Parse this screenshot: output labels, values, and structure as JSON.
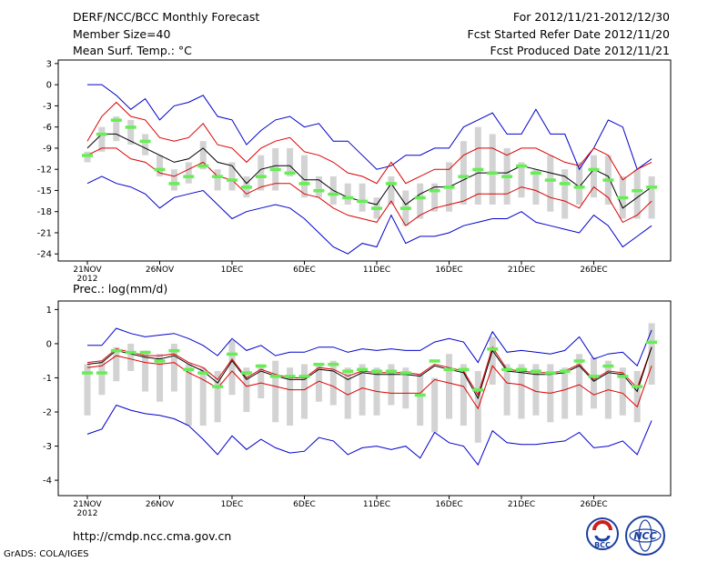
{
  "header": {
    "title": "DERF/NCC/BCC Monthly Forecast",
    "member_size": "Member Size=40",
    "variable": "Mean Surf. Temp.: °C",
    "period": "For 2012/11/21-2012/12/30",
    "started": "Fcst Started Refer Date 2012/11/20",
    "produced": "Fcst Produced Date 2012/11/21"
  },
  "footer": {
    "url": "http://cmdp.ncc.cma.gov.cn",
    "credit": "GrADS: COLA/IGES",
    "logo1_text": "BCC",
    "logo2_text": "NCC"
  },
  "colors": {
    "spread_box": "#d3d3d3",
    "median_bar": "#66ee55",
    "envelope": "#0000cc",
    "inner": "#dd0000",
    "mean": "#000000"
  },
  "chart_data": [
    {
      "type": "ensemble-boxplot",
      "title": "Mean Surf. Temp.: °C",
      "ylim": [
        -25,
        3.5
      ],
      "yticks": [
        3,
        0,
        -3,
        -6,
        -9,
        -12,
        -15,
        -18,
        -21,
        -24
      ],
      "x": [
        1,
        2,
        3,
        4,
        5,
        6,
        7,
        8,
        9,
        10,
        11,
        12,
        13,
        14,
        15,
        16,
        17,
        18,
        19,
        20,
        21,
        22,
        23,
        24,
        25,
        26,
        27,
        28,
        29,
        30,
        31,
        32,
        33,
        34,
        35,
        36,
        37,
        38,
        39,
        40
      ],
      "xticks": [
        {
          "x": 1,
          "label": "21NOV",
          "sub": "2012"
        },
        {
          "x": 6,
          "label": "26NOV"
        },
        {
          "x": 11,
          "label": "1DEC"
        },
        {
          "x": 16,
          "label": "6DEC"
        },
        {
          "x": 21,
          "label": "11DEC"
        },
        {
          "x": 26,
          "label": "16DEC"
        },
        {
          "x": 31,
          "label": "21DEC"
        },
        {
          "x": 36,
          "label": "26DEC"
        }
      ],
      "box_low": [
        -11,
        -9.5,
        -8,
        -8.5,
        -10,
        -13,
        -15,
        -14,
        -12,
        -15,
        -15,
        -16,
        -15,
        -15,
        -13,
        -16,
        -16,
        -17,
        -17,
        -18,
        -19,
        -17,
        -20,
        -19,
        -18,
        -18,
        -17,
        -17,
        -17,
        -17,
        -16,
        -17,
        -18,
        -19,
        -17,
        -16,
        -17,
        -19,
        -19,
        -19
      ],
      "box_high": [
        -9.5,
        -6,
        -4.5,
        -5,
        -7,
        -10,
        -12,
        -11,
        -8,
        -12,
        -11,
        -13,
        -10,
        -9,
        -9,
        -10,
        -13,
        -13,
        -14,
        -14,
        -16,
        -13,
        -15,
        -14,
        -14,
        -11,
        -8,
        -6,
        -7,
        -9,
        -11,
        -12,
        -10,
        -12,
        -11,
        -10,
        -10,
        -13,
        -12,
        -13
      ],
      "median": [
        -10,
        -7,
        -5,
        -6,
        -8,
        -12,
        -14,
        -13,
        -11.5,
        -13,
        -13.5,
        -14.5,
        -13,
        -12,
        -12.5,
        -14,
        -15,
        -15.5,
        -16,
        -16.5,
        -17.5,
        -14,
        -17.5,
        -16,
        -15,
        -14.5,
        -13,
        -12,
        -12.5,
        -13,
        -11.5,
        -12.5,
        -13.5,
        -14,
        -14.5,
        -12,
        -13.5,
        -16,
        -15,
        -14.5
      ],
      "series": [
        {
          "name": "ensemble max",
          "role": "envelope",
          "values": [
            0,
            0,
            -1.5,
            -3.5,
            -2,
            -5,
            -3,
            -2.5,
            -1.5,
            -4.5,
            -5,
            -8.5,
            -6.5,
            -5,
            -4.5,
            -6,
            -5.5,
            -8,
            -8,
            -10,
            -12,
            -11.5,
            -10,
            -10,
            -9,
            -9,
            -6,
            -5,
            -4,
            -7,
            -7,
            -3.5,
            -7,
            -7,
            -12,
            -9,
            -5,
            -6,
            -12,
            -10.5
          ]
        },
        {
          "name": "upper",
          "role": "inner",
          "values": [
            -8,
            -4.5,
            -2.5,
            -4.5,
            -5,
            -7.5,
            -8,
            -7.5,
            -5.5,
            -8.5,
            -9,
            -11,
            -9,
            -8,
            -7.5,
            -9.5,
            -10,
            -11,
            -12.5,
            -13,
            -14,
            -11,
            -14,
            -13,
            -12,
            -12,
            -10,
            -9,
            -9,
            -10,
            -9,
            -9,
            -10,
            -11,
            -11.5,
            -9,
            -10,
            -13.5,
            -12,
            -11
          ]
        },
        {
          "name": "mean",
          "role": "mean",
          "values": [
            -9,
            -7,
            -7,
            -8,
            -9,
            -10,
            -11,
            -10.5,
            -9,
            -11,
            -11.5,
            -14,
            -12,
            -11.5,
            -11.5,
            -13.5,
            -13.5,
            -15,
            -16,
            -16.5,
            -17,
            -14,
            -17,
            -15.5,
            -14.5,
            -14.5,
            -13.5,
            -12.5,
            -12.5,
            -12.5,
            -11.5,
            -12,
            -12.5,
            -13,
            -14.5,
            -12,
            -13,
            -17.5,
            -16,
            -14.5
          ]
        },
        {
          "name": "lower",
          "role": "inner",
          "values": [
            -10,
            -9,
            -9,
            -10.5,
            -11,
            -12.5,
            -13,
            -12,
            -11,
            -13,
            -13.5,
            -15.5,
            -14.5,
            -14,
            -14,
            -15.5,
            -16,
            -17.5,
            -18.5,
            -19,
            -19.5,
            -16.5,
            -20,
            -18.5,
            -17.5,
            -17,
            -16.5,
            -15.5,
            -15.5,
            -15.5,
            -14.5,
            -15,
            -16,
            -16.5,
            -17.5,
            -14.5,
            -16,
            -19.5,
            -18.5,
            -16.5
          ]
        },
        {
          "name": "ensemble min",
          "role": "envelope",
          "values": [
            -14,
            -13,
            -14,
            -14.5,
            -15.5,
            -17.5,
            -16,
            -15.5,
            -15,
            -17,
            -19,
            -18,
            -17.5,
            -17,
            -17.5,
            -19,
            -21,
            -23,
            -24,
            -22.5,
            -23,
            -18.5,
            -22.5,
            -21.5,
            -21.5,
            -21,
            -20,
            -19.5,
            -19,
            -19,
            -18,
            -19.5,
            -20,
            -20.5,
            -21,
            -18.5,
            -20,
            -23,
            -21.5,
            -20
          ]
        }
      ]
    },
    {
      "type": "ensemble-boxplot",
      "title": "Prec.: log(mm/d)",
      "ylim": [
        -4.45,
        1.25
      ],
      "yticks": [
        1,
        0,
        -1,
        -2,
        -3,
        -4
      ],
      "x": [
        1,
        2,
        3,
        4,
        5,
        6,
        7,
        8,
        9,
        10,
        11,
        12,
        13,
        14,
        15,
        16,
        17,
        18,
        19,
        20,
        21,
        22,
        23,
        24,
        25,
        26,
        27,
        28,
        29,
        30,
        31,
        32,
        33,
        34,
        35,
        36,
        37,
        38,
        39,
        40
      ],
      "xticks": [
        {
          "x": 1,
          "label": "21NOV",
          "sub": "2012"
        },
        {
          "x": 6,
          "label": "26NOV"
        },
        {
          "x": 11,
          "label": "1DEC"
        },
        {
          "x": 16,
          "label": "6DEC"
        },
        {
          "x": 21,
          "label": "11DEC"
        },
        {
          "x": 26,
          "label": "16DEC"
        },
        {
          "x": 31,
          "label": "21DEC"
        },
        {
          "x": 36,
          "label": "26DEC"
        }
      ],
      "box_low": [
        -2.1,
        -1.5,
        -1.1,
        -0.8,
        -1.4,
        -1.7,
        -1.4,
        -2.4,
        -2.4,
        -2.3,
        -1.5,
        -2.0,
        -1.6,
        -2.3,
        -2.4,
        -2.2,
        -1.7,
        -1.8,
        -2.2,
        -2.1,
        -2.1,
        -1.8,
        -1.9,
        -2.4,
        -2.6,
        -2.2,
        -2.4,
        -2.9,
        -1.2,
        -2.1,
        -2.2,
        -2.1,
        -2.3,
        -2.2,
        -2.1,
        -1.9,
        -2.2,
        -2.1,
        -2.3,
        -1.2
      ],
      "box_high": [
        -0.6,
        -0.5,
        -0.1,
        0.0,
        -0.2,
        -0.3,
        0.0,
        -0.6,
        -0.7,
        -0.8,
        0.1,
        -0.7,
        -0.6,
        -0.5,
        -0.7,
        -0.6,
        -0.6,
        -0.5,
        -0.7,
        -0.6,
        -0.7,
        -0.6,
        -0.7,
        -0.9,
        -1.0,
        -0.3,
        -0.6,
        -0.8,
        0.2,
        -0.6,
        -0.6,
        -0.6,
        -0.6,
        -0.7,
        -0.3,
        -0.4,
        -0.5,
        -0.7,
        -0.8,
        0.6
      ],
      "median": [
        -0.85,
        -0.85,
        -0.2,
        -0.25,
        -0.25,
        -0.5,
        -0.2,
        -0.75,
        -0.85,
        -1.25,
        -0.3,
        -0.85,
        -0.65,
        -0.95,
        -0.95,
        -0.95,
        -0.6,
        -0.6,
        -0.8,
        -0.75,
        -0.8,
        -0.8,
        -0.85,
        -1.5,
        -0.5,
        -0.75,
        -0.75,
        -1.35,
        -0.15,
        -0.75,
        -0.75,
        -0.8,
        -0.85,
        -0.8,
        -0.5,
        -0.95,
        -0.65,
        -0.95,
        -1.25,
        0.05
      ],
      "series": [
        {
          "name": "ensemble max",
          "role": "envelope",
          "values": [
            -0.05,
            -0.05,
            0.45,
            0.3,
            0.2,
            0.25,
            0.3,
            0.15,
            -0.05,
            -0.35,
            0.15,
            -0.2,
            -0.05,
            -0.35,
            -0.25,
            -0.25,
            -0.1,
            -0.1,
            -0.25,
            -0.15,
            -0.2,
            -0.15,
            -0.2,
            -0.2,
            0.05,
            0.15,
            0.05,
            -0.55,
            0.35,
            -0.25,
            -0.2,
            -0.25,
            -0.3,
            -0.2,
            0.2,
            -0.45,
            -0.3,
            -0.25,
            -0.65,
            0.4
          ]
        },
        {
          "name": "upper",
          "role": "inner",
          "values": [
            -0.55,
            -0.5,
            -0.15,
            -0.25,
            -0.35,
            -0.35,
            -0.3,
            -0.55,
            -0.7,
            -1.05,
            -0.45,
            -1.0,
            -0.75,
            -0.9,
            -1.0,
            -1.0,
            -0.7,
            -0.75,
            -0.95,
            -0.8,
            -0.85,
            -0.85,
            -0.85,
            -0.9,
            -0.6,
            -0.7,
            -0.8,
            -1.5,
            -0.1,
            -0.75,
            -0.8,
            -0.85,
            -0.85,
            -0.8,
            -0.6,
            -1.05,
            -0.8,
            -0.85,
            -1.3,
            -0.1
          ]
        },
        {
          "name": "mean",
          "role": "mean",
          "values": [
            -0.6,
            -0.55,
            -0.2,
            -0.3,
            -0.4,
            -0.45,
            -0.35,
            -0.6,
            -0.8,
            -1.15,
            -0.5,
            -1.05,
            -0.8,
            -0.95,
            -1.05,
            -1.05,
            -0.75,
            -0.8,
            -1.05,
            -0.85,
            -0.9,
            -0.9,
            -0.9,
            -0.95,
            -0.65,
            -0.75,
            -0.85,
            -1.6,
            -0.2,
            -0.8,
            -0.85,
            -0.9,
            -0.9,
            -0.85,
            -0.65,
            -1.1,
            -0.85,
            -0.9,
            -1.4,
            -0.1
          ]
        },
        {
          "name": "lower",
          "role": "inner",
          "values": [
            -0.7,
            -0.65,
            -0.35,
            -0.45,
            -0.55,
            -0.6,
            -0.55,
            -0.85,
            -1.05,
            -1.3,
            -0.8,
            -1.25,
            -1.15,
            -1.25,
            -1.35,
            -1.35,
            -1.1,
            -1.25,
            -1.5,
            -1.3,
            -1.4,
            -1.45,
            -1.45,
            -1.45,
            -1.05,
            -1.15,
            -1.25,
            -1.9,
            -0.65,
            -1.15,
            -1.2,
            -1.4,
            -1.45,
            -1.35,
            -1.2,
            -1.5,
            -1.35,
            -1.45,
            -1.85,
            -0.65
          ]
        },
        {
          "name": "ensemble min",
          "role": "envelope",
          "values": [
            -2.65,
            -2.5,
            -1.8,
            -1.95,
            -2.05,
            -2.1,
            -2.2,
            -2.4,
            -2.8,
            -3.25,
            -2.7,
            -3.1,
            -2.8,
            -3.05,
            -3.2,
            -3.15,
            -2.75,
            -2.85,
            -3.25,
            -3.05,
            -3.0,
            -3.1,
            -3.0,
            -3.35,
            -2.6,
            -2.9,
            -3.0,
            -3.55,
            -2.55,
            -2.9,
            -2.95,
            -2.95,
            -2.9,
            -2.85,
            -2.6,
            -3.05,
            -3.0,
            -2.85,
            -3.25,
            -2.25
          ]
        }
      ]
    }
  ]
}
